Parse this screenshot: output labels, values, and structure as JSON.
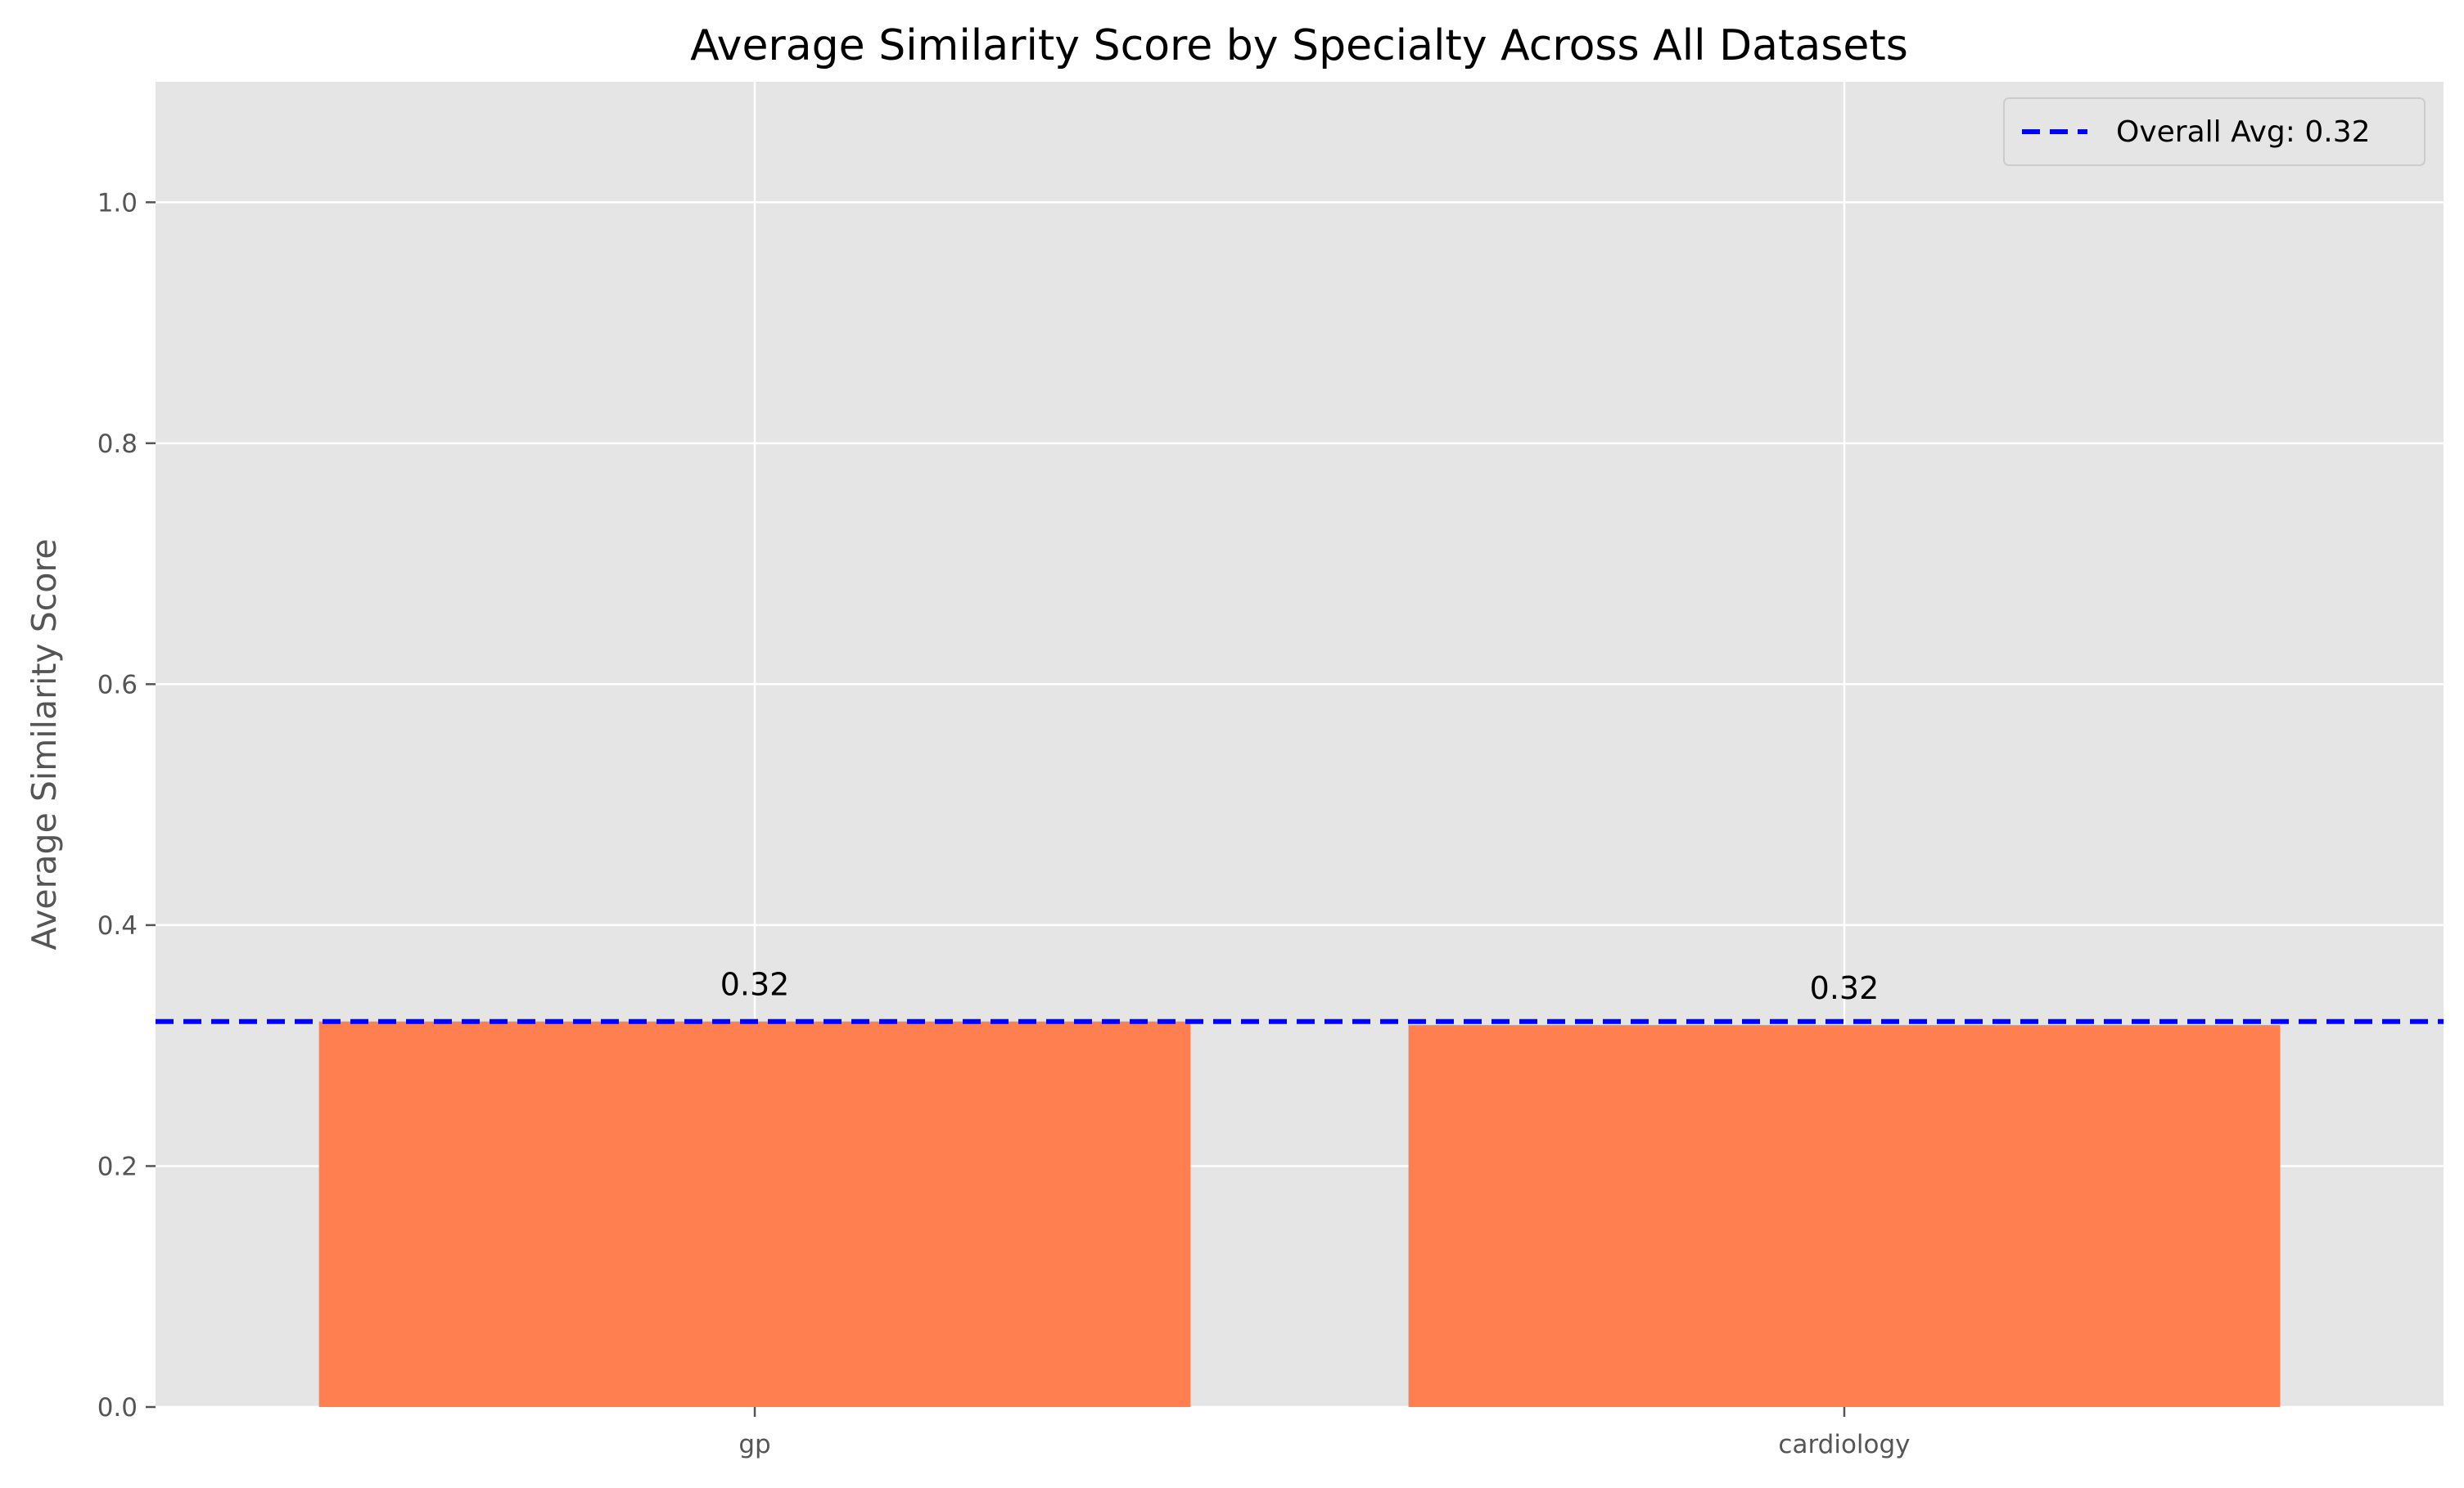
{
  "chart_data": {
    "type": "bar",
    "title": "Average Similarity Score by Specialty Across All Datasets",
    "xlabel": "",
    "ylabel": "Average Similarity Score",
    "categories": [
      "gp",
      "cardiology"
    ],
    "values": [
      0.32,
      0.317
    ],
    "data_labels": [
      "0.32",
      "0.32"
    ],
    "ylim": [
      0,
      1.1
    ],
    "yticks": [
      0.0,
      0.2,
      0.4,
      0.6,
      0.8,
      1.0
    ],
    "ytick_labels": [
      "0.0",
      "0.2",
      "0.4",
      "0.6",
      "0.8",
      "1.0"
    ],
    "reference_line": {
      "value": 0.32,
      "label": "Overall Avg: 0.32",
      "style": "dashed",
      "color": "#0000ff"
    },
    "bar_color": "#ff7f50",
    "background_color": "#e5e5e5",
    "grid": true,
    "legend_position": "top-right"
  }
}
